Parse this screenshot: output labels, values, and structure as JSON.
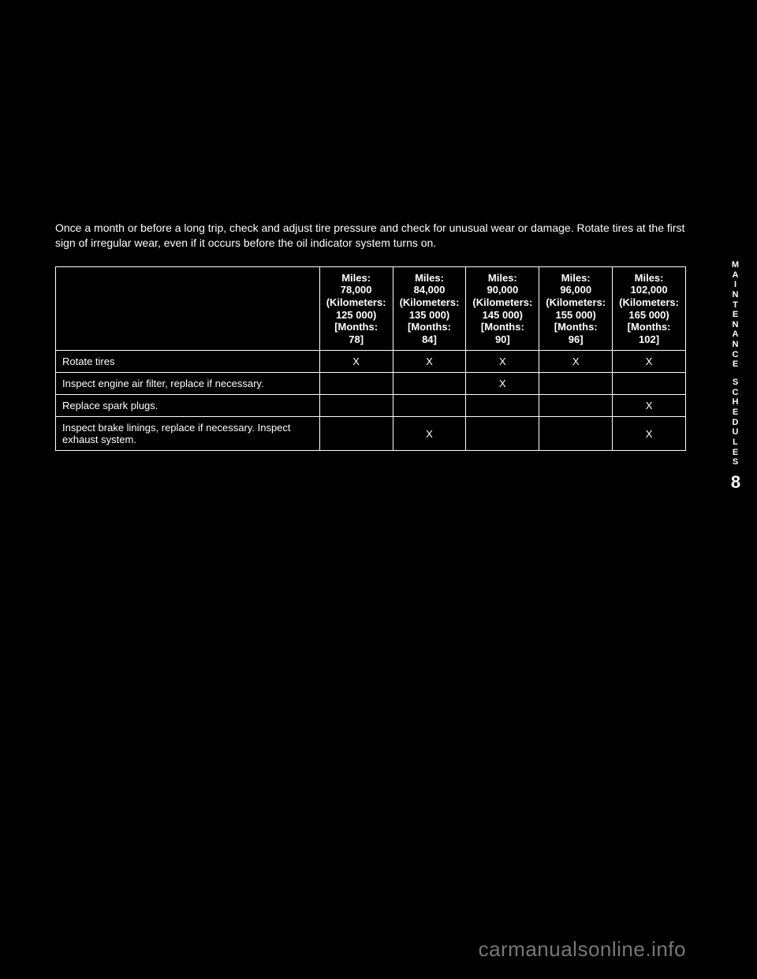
{
  "intro": "Once a month or before a long trip, check and adjust tire pressure and check for unusual wear or damage. Rotate tires at the first sign of irregular wear, even if it occurs before the oil indicator system turns on.",
  "columns": [
    {
      "miles": "78,000",
      "km": "125 000",
      "months": "78"
    },
    {
      "miles": "84,000",
      "km": "135 000",
      "months": "84"
    },
    {
      "miles": "90,000",
      "km": "145 000",
      "months": "90"
    },
    {
      "miles": "96,000",
      "km": "155 000",
      "months": "96"
    },
    {
      "miles": "102,000",
      "km": "165 000",
      "months": "102"
    }
  ],
  "header_labels": {
    "miles_prefix": "Miles:",
    "km_prefix": "(Kilometers:",
    "km_suffix": ")",
    "months_prefix": "[Months:",
    "months_suffix": "]"
  },
  "rows": [
    {
      "task": "Rotate tires",
      "marks": [
        "X",
        "X",
        "X",
        "X",
        "X"
      ]
    },
    {
      "task": "Inspect engine air filter, replace if necessary.",
      "marks": [
        "",
        "",
        "X",
        "",
        ""
      ]
    },
    {
      "task": "Replace spark plugs.",
      "marks": [
        "",
        "",
        "",
        "",
        "X"
      ]
    },
    {
      "task": "Inspect brake linings, replace if necessary. Inspect exhaust system.",
      "marks": [
        "",
        "X",
        "",
        "",
        "X"
      ]
    }
  ],
  "sidebar": {
    "label1": "MAINTENANCE",
    "label2": "SCHEDULES",
    "chapter": "8"
  },
  "watermark": "carmanualsonline.info"
}
